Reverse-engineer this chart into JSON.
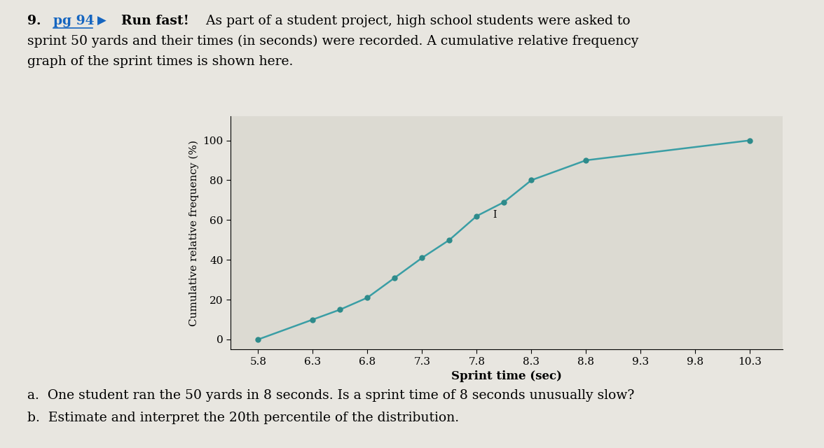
{
  "x": [
    5.8,
    6.3,
    6.55,
    6.8,
    7.05,
    7.3,
    7.55,
    7.8,
    8.05,
    8.3,
    8.8,
    10.3
  ],
  "y": [
    0,
    10,
    15,
    21,
    31,
    41,
    50,
    62,
    69,
    80,
    90,
    100
  ],
  "xticks": [
    5.8,
    6.3,
    6.8,
    7.3,
    7.8,
    8.3,
    8.8,
    9.3,
    9.8,
    10.3
  ],
  "yticks": [
    0,
    20,
    40,
    60,
    80,
    100
  ],
  "xlabel": "Sprint time (sec)",
  "ylabel": "Cumulative relative frequency (%)",
  "line_color": "#3a9ea5",
  "marker_color": "#2e8b8b",
  "bg_color": "#e8e6e0",
  "plot_bg_color": "#dcdad2",
  "label_a": "a.  One student ran the 50 yards in 8 seconds. Is a sprint time of 8 seconds unusually slow?",
  "label_b": "b.  Estimate and interpret the 20th percentile of the distribution.",
  "num_label": "9.",
  "pg_label": "pg 94",
  "arrow_label": "▶",
  "bold_label": "Run fast!",
  "rest_line1": " As part of a student project, high school students were asked to",
  "line2": "sprint 50 yards and their times (in seconds) were recorded. A cumulative relative frequency",
  "line3": "graph of the sprint times is shown here.",
  "xlim": [
    5.55,
    10.6
  ],
  "ylim": [
    -5,
    112
  ]
}
